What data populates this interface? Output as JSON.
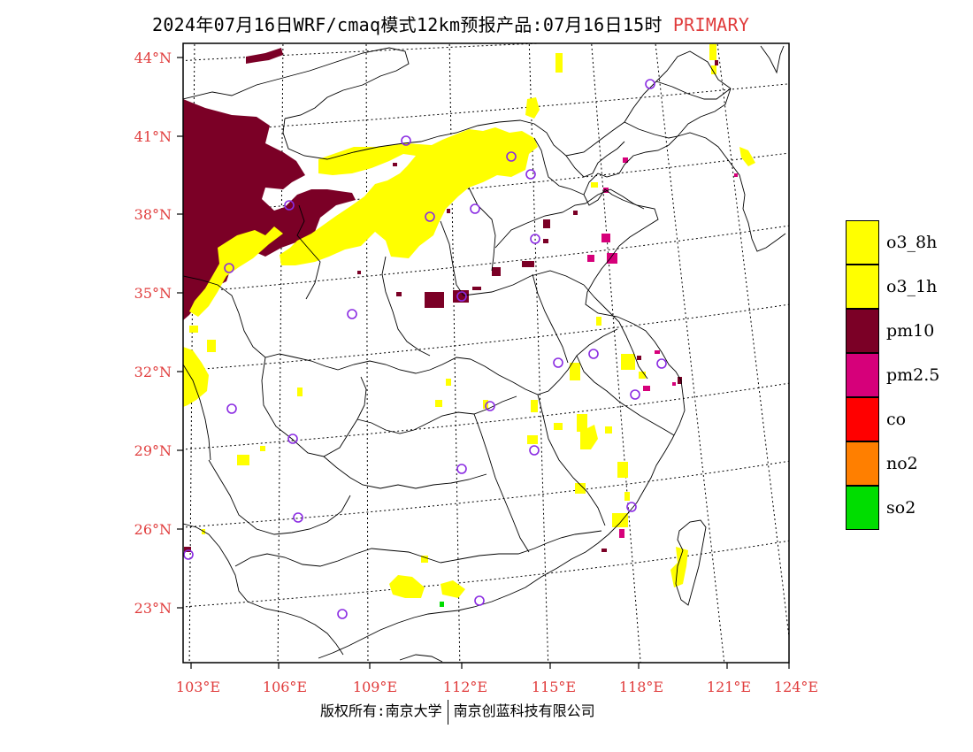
{
  "title": {
    "main": "2024年07月16日WRF/cmaq模式12km预报产品:07月16日15时",
    "tag": "PRIMARY"
  },
  "map": {
    "lat_labels": [
      "44°N",
      "41°N",
      "38°N",
      "35°N",
      "32°N",
      "29°N",
      "26°N",
      "23°N"
    ],
    "lon_labels": [
      "103°E",
      "106°E",
      "109°E",
      "112°E",
      "115°E",
      "118°E",
      "121°E",
      "124°E"
    ]
  },
  "legend": {
    "items": [
      {
        "label": "o3_8h",
        "color": "#ffff00"
      },
      {
        "label": "o3_1h",
        "color": "#ffff00"
      },
      {
        "label": "pm10",
        "color": "#7b0026"
      },
      {
        "label": "pm2.5",
        "color": "#d6007a"
      },
      {
        "label": "co",
        "color": "#ff0000"
      },
      {
        "label": "no2",
        "color": "#ff7f00"
      },
      {
        "label": "so2",
        "color": "#00dd00"
      }
    ]
  },
  "footer": {
    "copyright": "版权所有:南京大学",
    "company": "南京创蓝科技有限公司"
  },
  "colors": {
    "o3": "#ffff00",
    "pm10": "#7b0026",
    "pm25": "#d6007a",
    "so2": "#00dd00",
    "station_ring": "#8a2be2",
    "label_red": "#e03c3c"
  }
}
